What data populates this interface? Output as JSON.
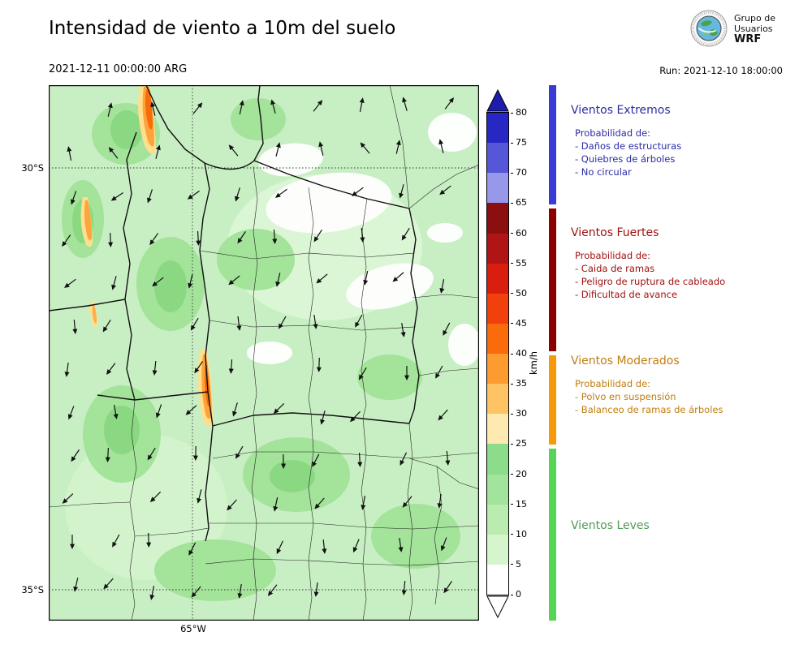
{
  "header": {
    "title": "Intensidad de viento a 10m del suelo",
    "valid_time": "2021-12-11 00:00:00 ARG",
    "run_label": "Run: 2021-12-10 18:00:00",
    "logo": {
      "line1": "Grupo de",
      "line2": "Usuarios",
      "line3": "WRF"
    }
  },
  "map": {
    "lat_labels": [
      "30°S",
      "35°S"
    ],
    "lon_label": "65°W"
  },
  "colorbar": {
    "unit": "km/h",
    "tick_values": [
      80,
      75,
      70,
      65,
      60,
      55,
      50,
      45,
      40,
      35,
      30,
      25,
      20,
      15,
      10,
      5,
      0
    ],
    "segment_colors_top_to_bottom": [
      "#2727c3",
      "#5656d8",
      "#9898ea",
      "#8b0f0f",
      "#b01414",
      "#d91e10",
      "#f2400c",
      "#fa6b0c",
      "#fd9a30",
      "#fec464",
      "#feeab0",
      "#8cdc8c",
      "#a2e49c",
      "#baecb0",
      "#d5f5cc",
      "#ffffff"
    ],
    "over_color": "#1c1cae",
    "under_color": "#ffffff"
  },
  "categories_strip": [
    {
      "name": "vientos-extremos",
      "color": "#3a3ad4"
    },
    {
      "name": "vientos-fuertes",
      "color": "#8b0000"
    },
    {
      "name": "vientos-moderados",
      "color": "#f79a0a"
    },
    {
      "name": "vientos-leves",
      "color": "#55d455"
    }
  ],
  "legend": {
    "sections": [
      {
        "title": "Vientos Extremos",
        "color": "#2b2ba8",
        "subtitle": "Probabilidad de:",
        "items": [
          "- Daños de estructuras",
          "- Quiebres de árboles",
          "- No circular"
        ]
      },
      {
        "title": "Vientos Fuertes",
        "color": "#a01010",
        "subtitle": "Probabilidad de:",
        "items": [
          "- Caida de ramas",
          "- Peligro de ruptura de cableado",
          "- Dificultad de avance"
        ]
      },
      {
        "title": "Vientos Moderados",
        "color": "#c07d10",
        "subtitle": "Probabilidad de:",
        "items": [
          "- Polvo en suspensión",
          "- Balanceo de ramas de árboles"
        ]
      },
      {
        "title": "Vientos Leves",
        "color": "#4f9a55",
        "subtitle": "",
        "items": []
      }
    ]
  }
}
